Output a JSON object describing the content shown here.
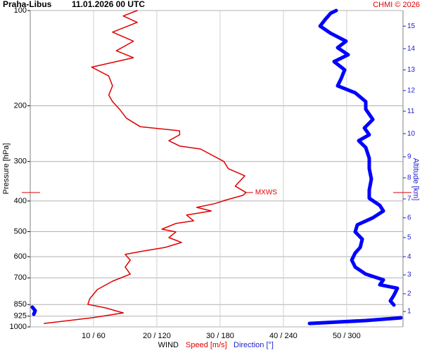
{
  "chart_data": {
    "type": "line",
    "station": "Praha-Libus",
    "time": "11.01.2026 00 UTC",
    "source": "CHMI © 2026",
    "ylabel": "Pressure [hPa]",
    "y2label": "Altitude [km]",
    "xlabel": "WIND",
    "ylim": [
      1000,
      100
    ],
    "yscale": "log",
    "yticks": [
      100,
      200,
      300,
      400,
      500,
      600,
      700,
      850,
      925,
      1000
    ],
    "xlim": [
      0,
      58.9
    ],
    "x2lim": [
      0,
      353.3
    ],
    "xticks": [
      {
        "value": 10,
        "label": "10 / 60"
      },
      {
        "value": 20,
        "label": "20 / 120"
      },
      {
        "value": 30,
        "label": "30 / 180"
      },
      {
        "value": 40,
        "label": "40 / 240"
      },
      {
        "value": 50,
        "label": "50 / 300"
      }
    ],
    "y2ticks": [
      1,
      2,
      3,
      4,
      5,
      6,
      7,
      8,
      9,
      10,
      11,
      12,
      13,
      14,
      15
    ],
    "y2tick_pressures": [
      894,
      786,
      685,
      600,
      522,
      452,
      394,
      338,
      290,
      245,
      208,
      179,
      154,
      132,
      112
    ],
    "grid": true,
    "annotation": {
      "text": "MXWS",
      "pressure": 376
    },
    "series": [
      {
        "name": "Speed [m/s]",
        "color": "#e00000",
        "y": [
          975,
          936,
          903,
          871,
          849,
          815,
          762,
          717,
          681,
          647,
          615,
          590,
          575,
          561,
          541,
          522,
          501,
          491,
          471,
          462,
          443,
          430,
          419,
          408,
          398,
          384,
          376,
          359,
          333,
          316,
          300,
          274,
          268,
          258,
          247,
          240,
          233,
          219,
          205,
          194,
          185,
          173,
          161,
          151,
          141,
          134,
          125,
          117,
          109,
          104,
          100
        ],
        "values": [
          2.2,
          9.7,
          14.7,
          11.9,
          9.1,
          9.4,
          10.6,
          13.0,
          15.8,
          15.0,
          15.8,
          15.0,
          18.0,
          21.3,
          23.9,
          21.9,
          23.0,
          20.8,
          23.0,
          25.8,
          24.7,
          28.6,
          26.3,
          29.1,
          30.8,
          33.6,
          34.1,
          32.4,
          33.9,
          31.3,
          30.6,
          26.9,
          23.6,
          21.9,
          23.6,
          23.6,
          17.4,
          15.2,
          14.1,
          13.0,
          12.4,
          13.0,
          12.4,
          9.7,
          16.3,
          13.6,
          16.3,
          13.0,
          16.9,
          14.7,
          16.9
        ]
      },
      {
        "name": "Direction [°]",
        "color": "#0000ff",
        "axis": "x2",
        "y": [
          975,
          955,
          936,
          null,
          912,
          889,
          866,
          null,
          853,
          828,
          794,
          755,
          736,
          710,
          681,
          647,
          615,
          584,
          561,
          528,
          501,
          476,
          452,
          430,
          413,
          392,
          369,
          341,
          316,
          293,
          271,
          258,
          247,
          235,
          221,
          205,
          194,
          182,
          173,
          164,
          154,
          145,
          138,
          131,
          125,
          118,
          112,
          107,
          102,
          100
        ],
        "values": [
          264.7,
          318,
          351.3,
          null,
          3.3,
          4.7,
          2,
          null,
          344.7,
          341.3,
          344.7,
          348,
          331.3,
          334.7,
          318,
          308,
          304.7,
          308,
          312.7,
          314.7,
          308,
          310,
          324.7,
          334.7,
          331.3,
          321.3,
          321.3,
          323.3,
          321.3,
          321.3,
          318,
          311.3,
          321.3,
          316.7,
          324.7,
          318,
          318,
          308,
          291.3,
          294.7,
          298,
          288,
          301.3,
          291.3,
          299.3,
          284.7,
          274.7,
          279.3,
          284.7,
          290
        ]
      }
    ]
  }
}
